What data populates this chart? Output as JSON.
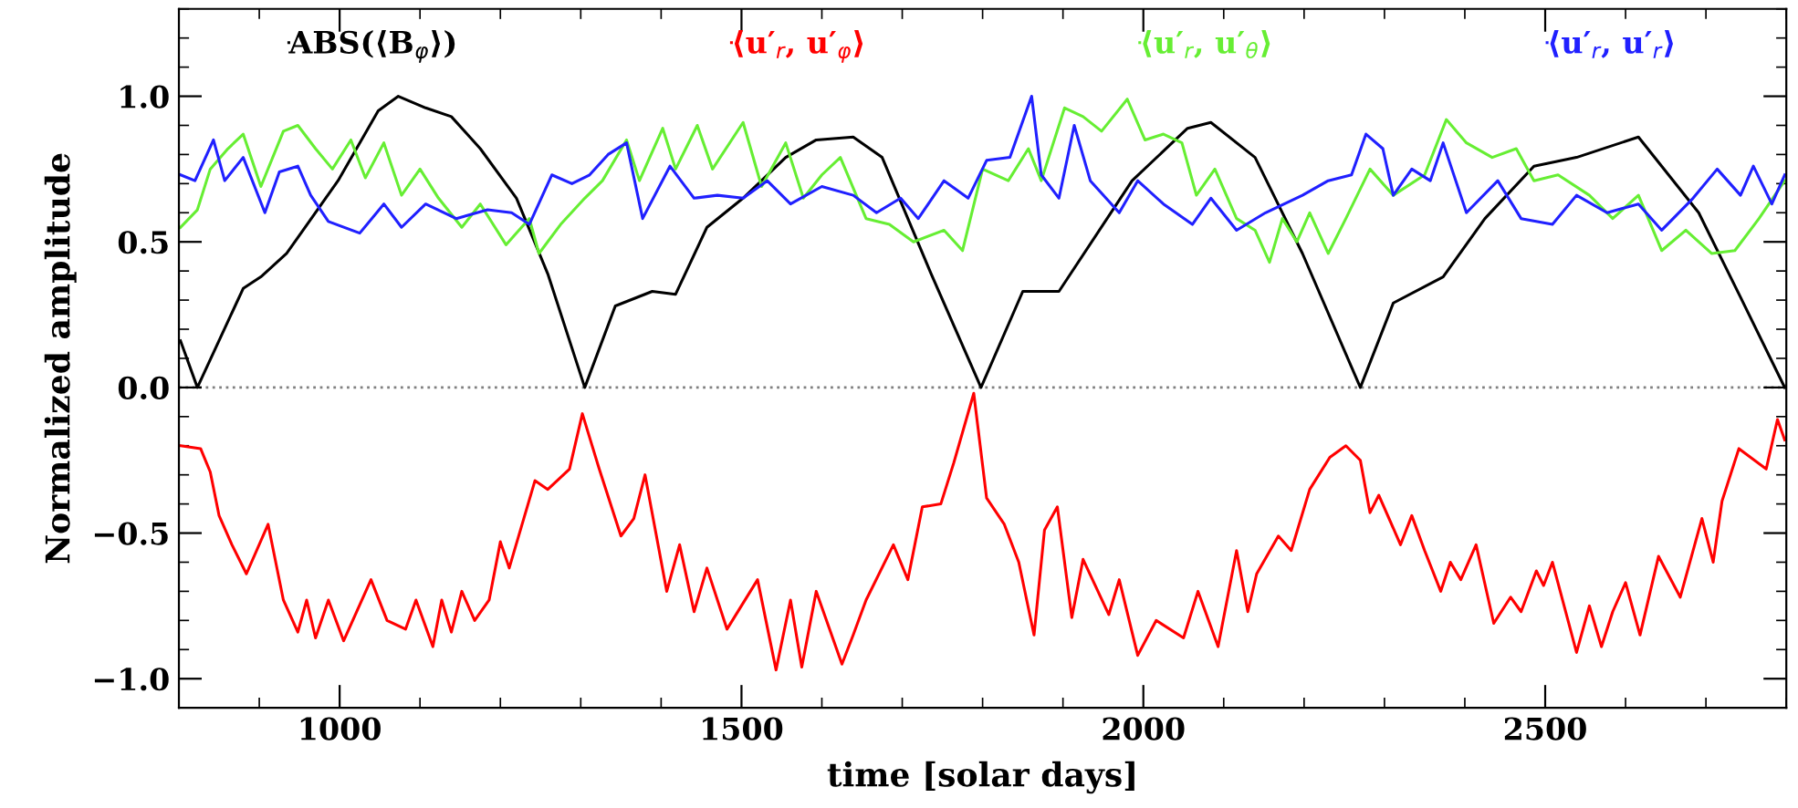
{
  "chart_data": {
    "type": "line",
    "xlabel": "time [solar days]",
    "ylabel": "Normalized amplitude",
    "xlim": [
      800,
      2800
    ],
    "ylim": [
      -1.1,
      1.3
    ],
    "xticks": [
      1000,
      1500,
      2000,
      2500
    ],
    "yticks": [
      {
        "value": -1.0,
        "label": "−1.0"
      },
      {
        "value": -0.5,
        "label": "−0.5"
      },
      {
        "value": 0.0,
        "label": "0.0"
      },
      {
        "value": 0.5,
        "label": "0.5"
      },
      {
        "value": 1.0,
        "label": "1.0"
      }
    ],
    "grid": false,
    "legend": "top",
    "marker": "none",
    "line_style": "solid",
    "ref_lines": [
      {
        "axis": "y",
        "value": 0,
        "color": "#808080",
        "line_style": "dotted"
      }
    ],
    "series": [
      {
        "name": "ABS(⟨B$_{φ}$⟩)",
        "color": "#000000",
        "x": [
          802,
          823,
          880,
          902,
          934,
          998,
          1048,
          1073,
          1107,
          1139,
          1175,
          1220,
          1259,
          1305,
          1343,
          1389,
          1418,
          1457,
          1502,
          1555,
          1593,
          1639,
          1675,
          1736,
          1798,
          1850,
          1895,
          1986,
          2055,
          2084,
          2139,
          2198,
          2270,
          2311,
          2373,
          2425,
          2486,
          2539,
          2616,
          2691,
          2743,
          2798
        ],
        "values": [
          0.16,
          0,
          0.34,
          0.38,
          0.46,
          0.71,
          0.95,
          1.0,
          0.96,
          0.93,
          0.82,
          0.65,
          0.39,
          0,
          0.28,
          0.33,
          0.32,
          0.55,
          0.65,
          0.79,
          0.85,
          0.86,
          0.79,
          0.39,
          0,
          0.33,
          0.33,
          0.71,
          0.89,
          0.91,
          0.79,
          0.46,
          0,
          0.29,
          0.38,
          0.58,
          0.76,
          0.79,
          0.86,
          0.6,
          0.31,
          0
        ]
      },
      {
        "name": "⟨u′$_{r}$, u′$_{φ}$⟩",
        "color": "#ff0000",
        "x": [
          802,
          827,
          839,
          850,
          866,
          884,
          911,
          930,
          948,
          959,
          970,
          986,
          1005,
          1039,
          1059,
          1082,
          1095,
          1116,
          1127,
          1139,
          1152,
          1168,
          1186,
          1200,
          1211,
          1243,
          1259,
          1286,
          1302,
          1323,
          1350,
          1366,
          1380,
          1407,
          1423,
          1441,
          1457,
          1482,
          1520,
          1543,
          1561,
          1575,
          1593,
          1625,
          1639,
          1655,
          1689,
          1707,
          1725,
          1748,
          1764,
          1789,
          1805,
          1827,
          1845,
          1864,
          1877,
          1893,
          1911,
          1925,
          1957,
          1970,
          1993,
          2016,
          2050,
          2068,
          2093,
          2116,
          2130,
          2141,
          2168,
          2184,
          2207,
          2232,
          2252,
          2270,
          2282,
          2293,
          2320,
          2334,
          2350,
          2370,
          2382,
          2395,
          2414,
          2436,
          2457,
          2470,
          2489,
          2498,
          2509,
          2539,
          2555,
          2570,
          2584,
          2600,
          2618,
          2641,
          2668,
          2695,
          2709,
          2720,
          2741,
          2775,
          2789,
          2798
        ],
        "values": [
          -0.2,
          -0.21,
          -0.29,
          -0.44,
          -0.54,
          -0.64,
          -0.47,
          -0.73,
          -0.84,
          -0.73,
          -0.86,
          -0.73,
          -0.87,
          -0.66,
          -0.8,
          -0.83,
          -0.73,
          -0.89,
          -0.73,
          -0.84,
          -0.7,
          -0.8,
          -0.73,
          -0.53,
          -0.62,
          -0.32,
          -0.35,
          -0.28,
          -0.09,
          -0.28,
          -0.51,
          -0.45,
          -0.3,
          -0.7,
          -0.54,
          -0.77,
          -0.62,
          -0.83,
          -0.66,
          -0.97,
          -0.73,
          -0.96,
          -0.7,
          -0.95,
          -0.85,
          -0.73,
          -0.54,
          -0.66,
          -0.41,
          -0.4,
          -0.26,
          -0.02,
          -0.38,
          -0.47,
          -0.6,
          -0.85,
          -0.49,
          -0.41,
          -0.79,
          -0.59,
          -0.78,
          -0.66,
          -0.92,
          -0.8,
          -0.86,
          -0.7,
          -0.89,
          -0.56,
          -0.77,
          -0.64,
          -0.51,
          -0.56,
          -0.35,
          -0.24,
          -0.2,
          -0.25,
          -0.43,
          -0.37,
          -0.54,
          -0.44,
          -0.56,
          -0.7,
          -0.6,
          -0.66,
          -0.54,
          -0.81,
          -0.72,
          -0.77,
          -0.63,
          -0.68,
          -0.6,
          -0.91,
          -0.75,
          -0.89,
          -0.77,
          -0.67,
          -0.85,
          -0.58,
          -0.72,
          -0.45,
          -0.6,
          -0.39,
          -0.21,
          -0.28,
          -0.11,
          -0.18
        ]
      },
      {
        "name": "⟨u′$_{r}$, u′$_{θ}$⟩",
        "color": "#66ee33",
        "x": [
          802,
          823,
          839,
          861,
          880,
          902,
          930,
          948,
          970,
          991,
          1014,
          1032,
          1055,
          1077,
          1100,
          1123,
          1152,
          1175,
          1207,
          1236,
          1248,
          1275,
          1305,
          1327,
          1357,
          1373,
          1402,
          1418,
          1445,
          1464,
          1502,
          1525,
          1555,
          1577,
          1600,
          1623,
          1655,
          1684,
          1714,
          1752,
          1775,
          1800,
          1832,
          1857,
          1873,
          1902,
          1925,
          1948,
          1980,
          2002,
          2025,
          2048,
          2066,
          2089,
          2116,
          2139,
          2157,
          2173,
          2191,
          2207,
          2230,
          2252,
          2282,
          2311,
          2350,
          2377,
          2402,
          2434,
          2464,
          2486,
          2516,
          2555,
          2584,
          2616,
          2645,
          2675,
          2707,
          2736,
          2766,
          2798
        ],
        "values": [
          0.55,
          0.61,
          0.75,
          0.82,
          0.87,
          0.69,
          0.88,
          0.9,
          0.82,
          0.75,
          0.85,
          0.72,
          0.84,
          0.66,
          0.75,
          0.65,
          0.55,
          0.63,
          0.49,
          0.58,
          0.46,
          0.56,
          0.65,
          0.71,
          0.85,
          0.71,
          0.89,
          0.75,
          0.9,
          0.75,
          0.91,
          0.69,
          0.84,
          0.65,
          0.73,
          0.79,
          0.58,
          0.56,
          0.5,
          0.54,
          0.47,
          0.75,
          0.71,
          0.82,
          0.71,
          0.96,
          0.93,
          0.88,
          0.99,
          0.85,
          0.87,
          0.84,
          0.66,
          0.75,
          0.58,
          0.54,
          0.43,
          0.58,
          0.5,
          0.6,
          0.46,
          0.58,
          0.75,
          0.66,
          0.73,
          0.92,
          0.84,
          0.79,
          0.82,
          0.71,
          0.73,
          0.66,
          0.58,
          0.66,
          0.47,
          0.54,
          0.46,
          0.47,
          0.58,
          0.71
        ]
      },
      {
        "name": "⟨u′$_{r}$, u′$_{r}$⟩",
        "color": "#2020ff",
        "x": [
          802,
          820,
          843,
          857,
          880,
          907,
          925,
          948,
          964,
          986,
          1025,
          1055,
          1077,
          1107,
          1145,
          1184,
          1214,
          1236,
          1264,
          1289,
          1311,
          1334,
          1357,
          1377,
          1411,
          1441,
          1470,
          1502,
          1532,
          1561,
          1600,
          1639,
          1668,
          1698,
          1720,
          1752,
          1782,
          1805,
          1834,
          1861,
          1873,
          1895,
          1914,
          1934,
          1970,
          1993,
          2025,
          2061,
          2084,
          2116,
          2152,
          2198,
          2230,
          2259,
          2277,
          2298,
          2311,
          2334,
          2357,
          2373,
          2402,
          2441,
          2470,
          2509,
          2539,
          2577,
          2616,
          2645,
          2684,
          2714,
          2743,
          2759,
          2782,
          2798
        ],
        "values": [
          0.73,
          0.71,
          0.85,
          0.71,
          0.79,
          0.6,
          0.74,
          0.76,
          0.66,
          0.57,
          0.53,
          0.63,
          0.55,
          0.63,
          0.58,
          0.61,
          0.6,
          0.56,
          0.73,
          0.7,
          0.73,
          0.8,
          0.84,
          0.58,
          0.76,
          0.65,
          0.66,
          0.65,
          0.71,
          0.63,
          0.69,
          0.66,
          0.6,
          0.65,
          0.58,
          0.71,
          0.65,
          0.78,
          0.79,
          1.0,
          0.73,
          0.65,
          0.9,
          0.71,
          0.6,
          0.71,
          0.63,
          0.56,
          0.65,
          0.54,
          0.6,
          0.66,
          0.71,
          0.73,
          0.87,
          0.82,
          0.66,
          0.75,
          0.71,
          0.84,
          0.6,
          0.71,
          0.58,
          0.56,
          0.66,
          0.6,
          0.63,
          0.54,
          0.65,
          0.75,
          0.66,
          0.76,
          0.63,
          0.73
        ]
      }
    ]
  }
}
